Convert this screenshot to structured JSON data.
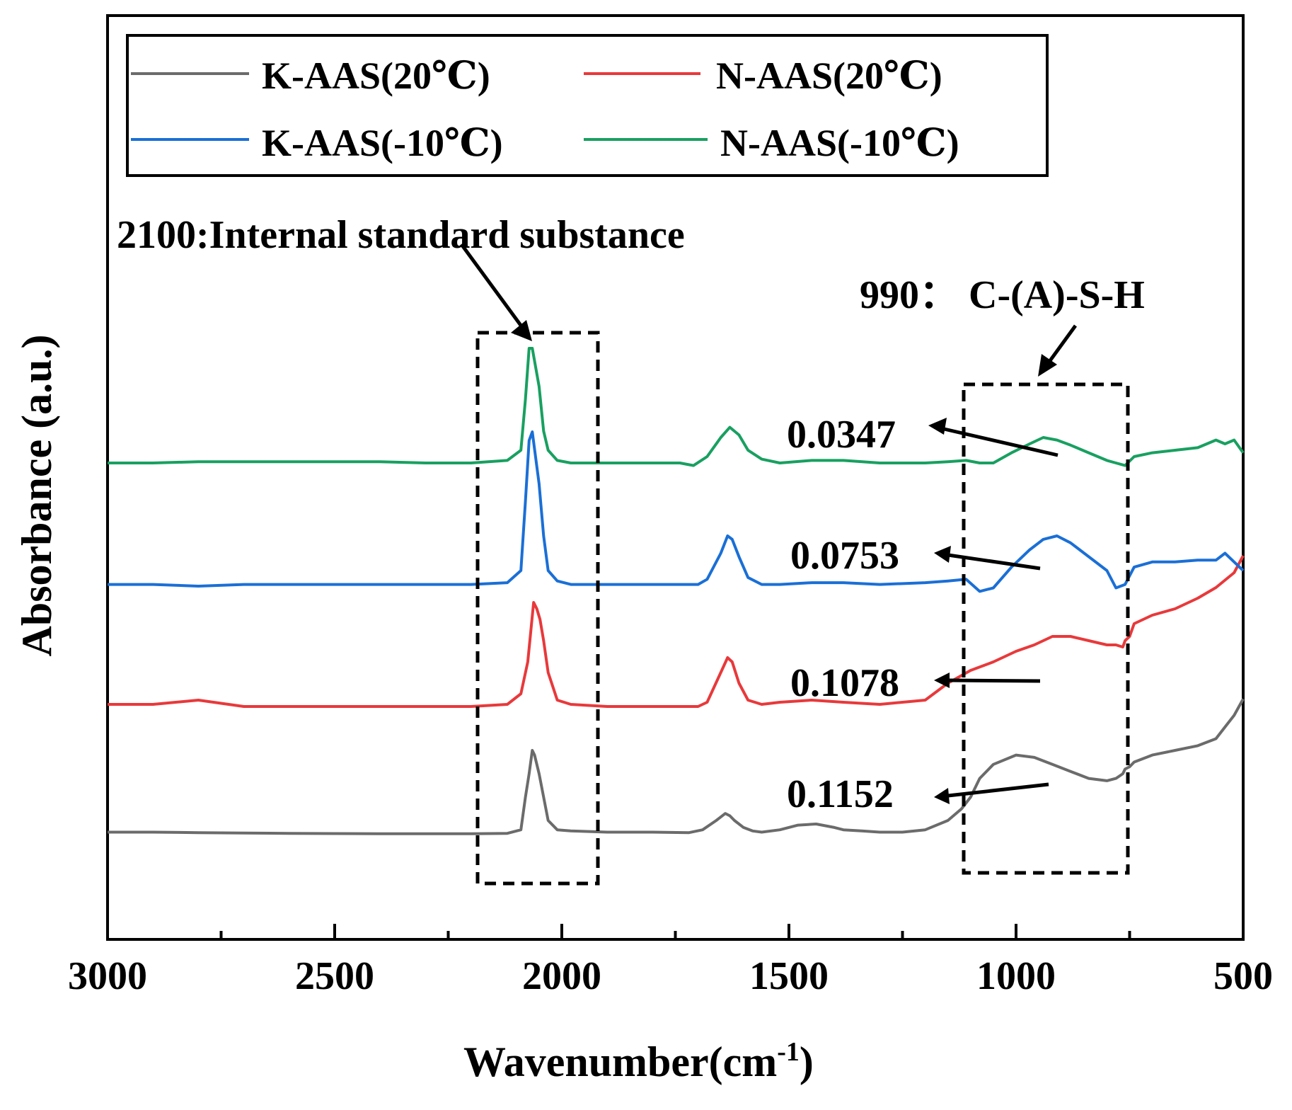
{
  "chart_data": {
    "type": "line",
    "xlabel": "Wavenumber(cm",
    "xlabel_sup": "-1",
    "xlabel_end": ")",
    "ylabel": "Absorbance (a.u.)",
    "xlim": [
      3000,
      500
    ],
    "x_reversed": true,
    "x_ticks": [
      3000,
      2500,
      2000,
      1500,
      1000,
      500
    ],
    "x_tick_labels": [
      "3000",
      "2500",
      "2000",
      "1500",
      "1000",
      "500"
    ],
    "y_ticks_shown": false,
    "grid": false,
    "legend_position": "top-left",
    "series": [
      {
        "name": "K-AAS(20℃)",
        "color": "#6b6b6b",
        "x": [
          3000,
          2900,
          2800,
          2700,
          2600,
          2500,
          2400,
          2300,
          2200,
          2120,
          2090,
          2080,
          2072,
          2065,
          2060,
          2050,
          2040,
          2030,
          2010,
          1980,
          1900,
          1800,
          1720,
          1690,
          1660,
          1640,
          1630,
          1620,
          1600,
          1580,
          1560,
          1520,
          1480,
          1440,
          1400,
          1380,
          1340,
          1300,
          1250,
          1200,
          1150,
          1120,
          1100,
          1080,
          1050,
          1000,
          960,
          920,
          880,
          840,
          800,
          780,
          765,
          760,
          750,
          740,
          700,
          650,
          600,
          560,
          540,
          520,
          500
        ],
        "y": [
          0.05,
          0.05,
          0.048,
          0.046,
          0.045,
          0.044,
          0.043,
          0.043,
          0.043,
          0.045,
          0.06,
          0.2,
          0.3,
          0.4,
          0.38,
          0.3,
          0.2,
          0.1,
          0.06,
          0.055,
          0.05,
          0.05,
          0.048,
          0.06,
          0.1,
          0.13,
          0.12,
          0.1,
          0.07,
          0.055,
          0.05,
          0.06,
          0.08,
          0.085,
          0.07,
          0.06,
          0.055,
          0.05,
          0.05,
          0.06,
          0.1,
          0.15,
          0.2,
          0.28,
          0.34,
          0.38,
          0.37,
          0.34,
          0.31,
          0.28,
          0.27,
          0.28,
          0.3,
          0.32,
          0.33,
          0.35,
          0.38,
          0.4,
          0.42,
          0.45,
          0.5,
          0.55,
          0.62
        ]
      },
      {
        "name": "N-AAS(20℃)",
        "color": "#e8393b",
        "x": [
          3000,
          2900,
          2800,
          2700,
          2600,
          2500,
          2400,
          2300,
          2200,
          2120,
          2090,
          2075,
          2062,
          2055,
          2048,
          2040,
          2030,
          2010,
          1980,
          1900,
          1800,
          1700,
          1680,
          1650,
          1635,
          1625,
          1610,
          1590,
          1560,
          1520,
          1450,
          1380,
          1300,
          1200,
          1150,
          1100,
          1050,
          1000,
          960,
          920,
          880,
          840,
          800,
          780,
          765,
          760,
          750,
          740,
          700,
          650,
          600,
          560,
          520,
          500
        ],
        "y": [
          0.1,
          0.1,
          0.12,
          0.09,
          0.09,
          0.09,
          0.09,
          0.09,
          0.09,
          0.1,
          0.15,
          0.3,
          0.58,
          0.55,
          0.5,
          0.4,
          0.25,
          0.12,
          0.1,
          0.09,
          0.09,
          0.09,
          0.11,
          0.25,
          0.32,
          0.3,
          0.2,
          0.12,
          0.1,
          0.11,
          0.12,
          0.11,
          0.1,
          0.12,
          0.2,
          0.26,
          0.3,
          0.35,
          0.38,
          0.42,
          0.42,
          0.4,
          0.38,
          0.38,
          0.37,
          0.4,
          0.42,
          0.48,
          0.52,
          0.55,
          0.6,
          0.65,
          0.72,
          0.8
        ]
      },
      {
        "name": "K-AAS(-10℃)",
        "color": "#1a6fd6",
        "x": [
          3000,
          2900,
          2800,
          2700,
          2600,
          2500,
          2400,
          2300,
          2200,
          2120,
          2090,
          2080,
          2072,
          2065,
          2060,
          2050,
          2040,
          2030,
          2010,
          1980,
          1900,
          1800,
          1700,
          1680,
          1650,
          1635,
          1625,
          1610,
          1590,
          1560,
          1520,
          1450,
          1380,
          1300,
          1200,
          1150,
          1110,
          1080,
          1050,
          1010,
          970,
          940,
          910,
          880,
          840,
          800,
          780,
          760,
          740,
          700,
          650,
          600,
          560,
          540,
          520,
          500
        ],
        "y": [
          0.12,
          0.12,
          0.11,
          0.12,
          0.12,
          0.12,
          0.12,
          0.12,
          0.12,
          0.13,
          0.2,
          0.6,
          0.95,
          1.0,
          0.9,
          0.7,
          0.4,
          0.2,
          0.14,
          0.12,
          0.12,
          0.12,
          0.12,
          0.15,
          0.3,
          0.4,
          0.38,
          0.28,
          0.16,
          0.12,
          0.12,
          0.13,
          0.13,
          0.12,
          0.13,
          0.14,
          0.15,
          0.08,
          0.1,
          0.22,
          0.32,
          0.38,
          0.4,
          0.36,
          0.28,
          0.2,
          0.1,
          0.12,
          0.22,
          0.25,
          0.25,
          0.26,
          0.26,
          0.3,
          0.25,
          0.2
        ]
      },
      {
        "name": "N-AAS(-10℃)",
        "color": "#18a060",
        "x": [
          3000,
          2900,
          2800,
          2700,
          2600,
          2500,
          2400,
          2300,
          2200,
          2120,
          2090,
          2080,
          2072,
          2065,
          2060,
          2050,
          2040,
          2030,
          2010,
          1980,
          1900,
          1800,
          1740,
          1710,
          1680,
          1650,
          1630,
          1610,
          1590,
          1560,
          1520,
          1450,
          1380,
          1300,
          1200,
          1150,
          1110,
          1080,
          1050,
          1010,
          970,
          940,
          910,
          880,
          840,
          800,
          780,
          760,
          740,
          700,
          650,
          600,
          560,
          540,
          520,
          500
        ],
        "y": [
          0.1,
          0.1,
          0.11,
          0.11,
          0.11,
          0.11,
          0.11,
          0.1,
          0.1,
          0.12,
          0.2,
          0.6,
          1.0,
          1.0,
          0.9,
          0.7,
          0.35,
          0.2,
          0.12,
          0.1,
          0.1,
          0.1,
          0.1,
          0.08,
          0.15,
          0.3,
          0.38,
          0.32,
          0.2,
          0.13,
          0.1,
          0.12,
          0.12,
          0.1,
          0.1,
          0.11,
          0.12,
          0.1,
          0.1,
          0.18,
          0.25,
          0.3,
          0.28,
          0.24,
          0.18,
          0.12,
          0.1,
          0.08,
          0.15,
          0.18,
          0.2,
          0.22,
          0.28,
          0.25,
          0.28,
          0.18
        ]
      }
    ],
    "annotations": {
      "internal_standard": "2100:Internal standard substance",
      "csh": "990：  C-(A)-S-H",
      "values": [
        "0.0347",
        "0.0753",
        "0.1078",
        "0.1152"
      ]
    }
  }
}
